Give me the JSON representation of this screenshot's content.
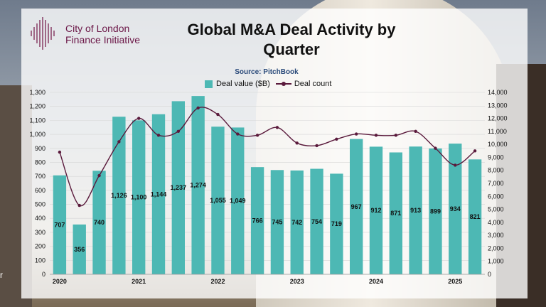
{
  "header": {
    "org_line1": "City of London",
    "org_line2": "Finance Initiative",
    "title_line1": "Global M&A Deal Activity by",
    "title_line2": "Quarter",
    "source": "Source: PitchBook"
  },
  "colors": {
    "bar": "#4db8b4",
    "line": "#5a1a3c",
    "brand": "#6b1747"
  },
  "corner_text": "r",
  "chart_data": {
    "type": "bar",
    "title": "Global M&A Deal Activity by Quarter",
    "categories": [
      "2020 Q1",
      "2020 Q2",
      "2020 Q3",
      "2020 Q4",
      "2021 Q1",
      "2021 Q2",
      "2021 Q3",
      "2021 Q4",
      "2022 Q1",
      "2022 Q2",
      "2022 Q3",
      "2022 Q4",
      "2023 Q1",
      "2023 Q2",
      "2023 Q3",
      "2023 Q4",
      "2024 Q1",
      "2024 Q2",
      "2024 Q3",
      "2024 Q4",
      "2025 Q1",
      "2025 Q2"
    ],
    "x_tick_labels": [
      "2020",
      "2021",
      "2022",
      "2023",
      "2024",
      "2025"
    ],
    "series": [
      {
        "name": "Deal value ($B)",
        "axis": "left",
        "kind": "bar",
        "values": [
          707,
          356,
          740,
          1126,
          1100,
          1144,
          1237,
          1274,
          1055,
          1049,
          766,
          745,
          742,
          754,
          719,
          967,
          912,
          871,
          913,
          899,
          934,
          821
        ],
        "labels": [
          "707",
          "356",
          "740",
          "1,126",
          "1,100",
          "1,144",
          "1,237",
          "1,274",
          "1,055",
          "1,049",
          "766",
          "745",
          "742",
          "754",
          "719",
          "967",
          "912",
          "871",
          "913",
          "899",
          "934",
          "821"
        ]
      },
      {
        "name": "Deal count",
        "axis": "right",
        "kind": "line",
        "values": [
          9400,
          5300,
          7600,
          10200,
          12000,
          10700,
          11000,
          12800,
          12300,
          10800,
          10700,
          11300,
          10100,
          9900,
          10400,
          10800,
          10700,
          10700,
          11000,
          9700,
          8400,
          9500
        ]
      }
    ],
    "y_left": {
      "min": 0,
      "max": 1300,
      "step": 100,
      "tick_labels": [
        "0",
        "100",
        "200",
        "300",
        "400",
        "500",
        "600",
        "700",
        "800",
        "900",
        "1,000",
        "1,100",
        "1,200",
        "1,300"
      ]
    },
    "y_right": {
      "min": 0,
      "max": 14000,
      "step": 1000,
      "tick_labels": [
        "0",
        "1,000",
        "2,000",
        "3,000",
        "4,000",
        "5,000",
        "6,000",
        "7,000",
        "8,000",
        "9,000",
        "10,000",
        "11,000",
        "12,000",
        "13,000",
        "14,000"
      ]
    },
    "legend": [
      "Deal value ($B)",
      "Deal count"
    ],
    "legend_position": "top-center"
  }
}
